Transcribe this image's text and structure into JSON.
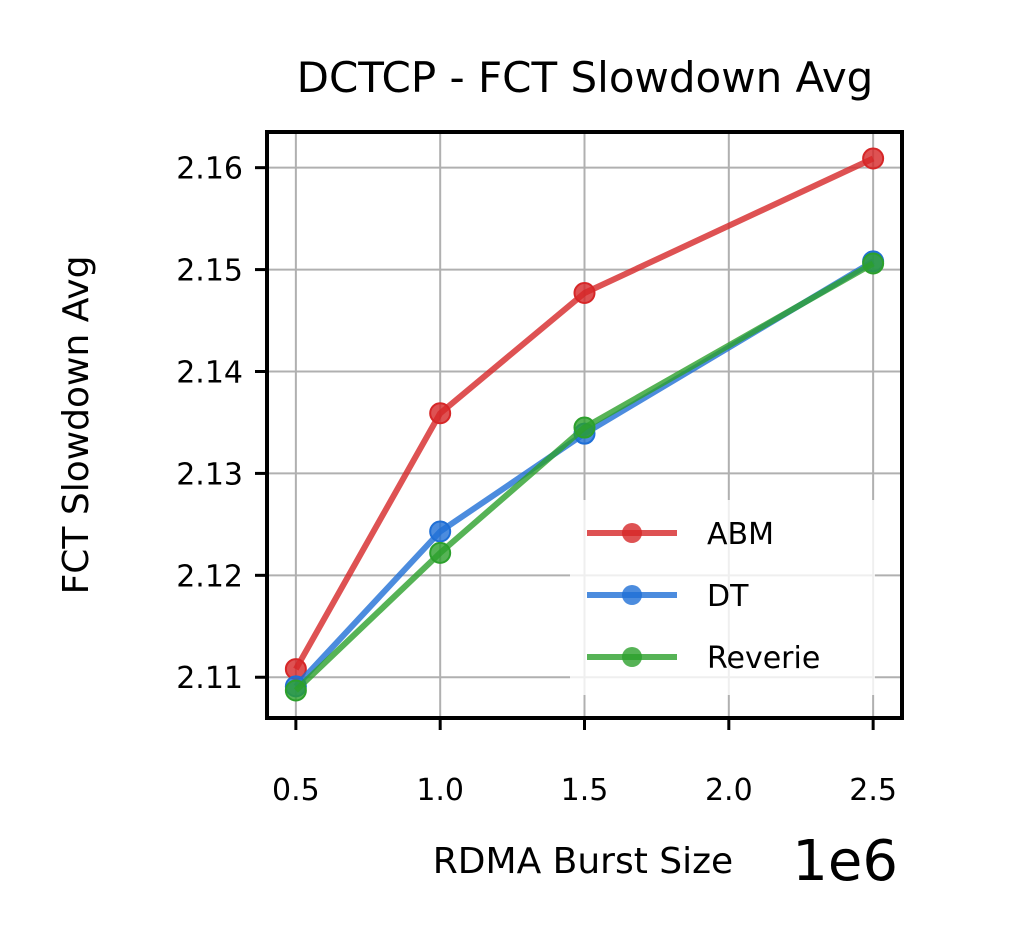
{
  "chart_data": {
    "type": "line",
    "title": "DCTCP - FCT Slowdown Avg",
    "xlabel": "RDMA Burst Size",
    "ylabel": "FCT Slowdown Avg",
    "x_offset_label": "1e6",
    "x": [
      0.5,
      1.0,
      1.5,
      2.5
    ],
    "xlim": [
      0.4,
      2.6
    ],
    "ylim": [
      2.106,
      2.1635
    ],
    "xticks": [
      0.5,
      1.0,
      1.5,
      2.0,
      2.5
    ],
    "xtick_labels": [
      "0.5",
      "1.0",
      "1.5",
      "2.0",
      "2.5"
    ],
    "yticks": [
      2.11,
      2.12,
      2.13,
      2.14,
      2.15,
      2.16
    ],
    "ytick_labels": [
      "2.11",
      "2.12",
      "2.13",
      "2.14",
      "2.15",
      "2.16"
    ],
    "grid": true,
    "legend_position": "lower-right",
    "series": [
      {
        "name": "ABM",
        "color": "#d62728",
        "values": [
          2.1108,
          2.1359,
          2.1477,
          2.1609
        ]
      },
      {
        "name": "DT",
        "color": "#1f6fd6",
        "values": [
          2.1091,
          2.1243,
          2.1339,
          2.1508
        ]
      },
      {
        "name": "Reverie",
        "color": "#2ca02c",
        "values": [
          2.1087,
          2.1222,
          2.1345,
          2.1506
        ]
      }
    ]
  }
}
